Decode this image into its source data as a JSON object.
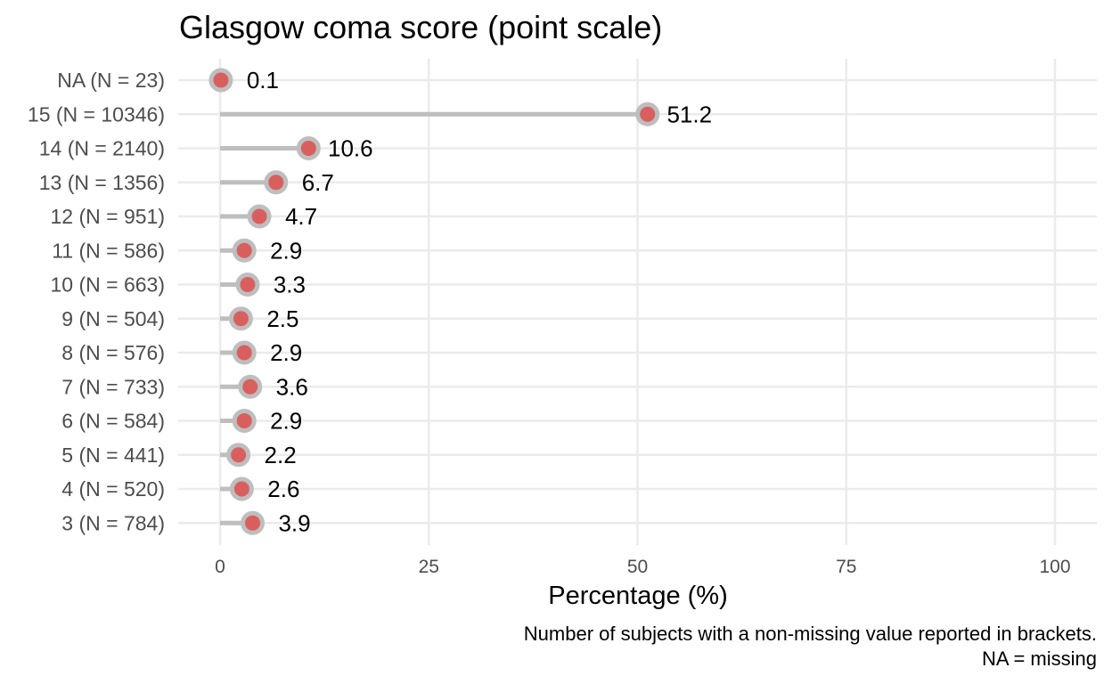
{
  "chart_data": {
    "type": "lollipop",
    "title": "Glasgow coma score (point scale)",
    "xlabel": "Percentage (%)",
    "ylabel": "",
    "xlim": [
      0,
      100
    ],
    "x_ticks": [
      0,
      25,
      50,
      75,
      100
    ],
    "x_tick_labels": [
      "0",
      "25",
      "50",
      "75",
      "100"
    ],
    "categories": [
      "NA (N = 23)",
      "15 (N = 10346)",
      "14 (N = 2140)",
      "13 (N = 1356)",
      "12 (N = 951)",
      "11 (N = 586)",
      "10 (N = 663)",
      "9 (N = 504)",
      "8 (N = 576)",
      "7 (N = 733)",
      "6 (N = 584)",
      "5 (N = 441)",
      "4 (N = 520)",
      "3 (N = 784)"
    ],
    "values": [
      0.1,
      51.2,
      10.6,
      6.7,
      4.7,
      2.9,
      3.3,
      2.5,
      2.9,
      3.6,
      2.9,
      2.2,
      2.6,
      3.9
    ],
    "value_labels": [
      "0.1",
      "51.2",
      "10.6",
      "6.7",
      "4.7",
      "2.9",
      "3.3",
      "2.5",
      "2.9",
      "3.6",
      "2.9",
      "2.2",
      "2.6",
      "3.9"
    ],
    "caption": [
      "Number of subjects with a non-missing value reported in brackets.",
      "NA = missing"
    ],
    "colors": {
      "point_fill": "#d95f5f",
      "point_outline": "#bebebe",
      "stem": "#bebebe",
      "grid": "#ebebeb",
      "axis_text": "#4d4d4d"
    },
    "grid": true
  }
}
